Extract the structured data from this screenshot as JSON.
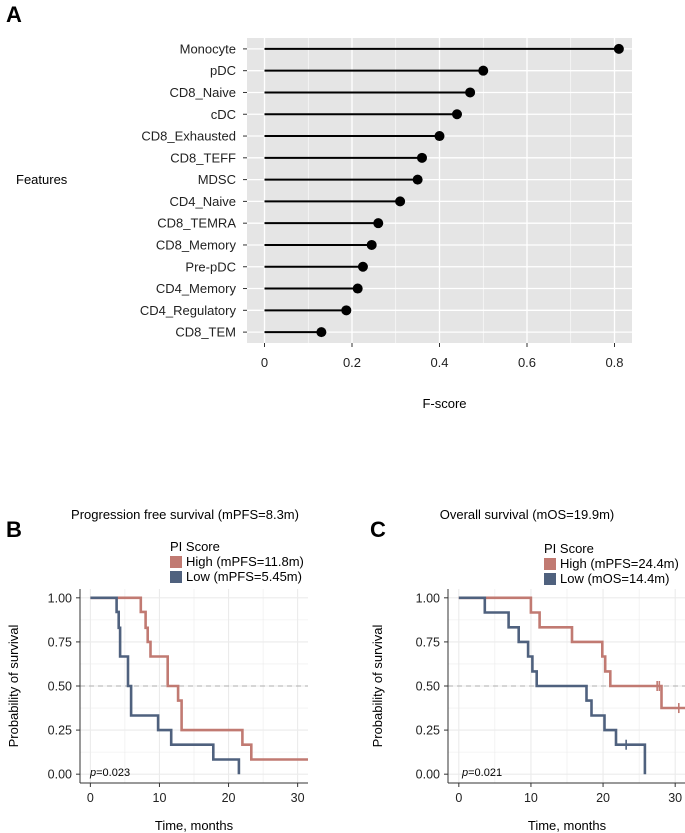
{
  "panels": {
    "A": "A",
    "B": "B",
    "C": "C"
  },
  "colors": {
    "panel_bg": "#e5e5e5",
    "grid": "#ffffff",
    "lollipop": "#000000",
    "high": "#c17a72",
    "low": "#4f617e",
    "median_line": "#bdbdbd",
    "km_grid": "#ebebeb"
  },
  "chart_data": [
    {
      "id": "feature-importance",
      "type": "lollipop",
      "title": "",
      "xlabel": "F-score",
      "ylabel": "Features",
      "xlim": [
        -0.04,
        0.84
      ],
      "xticks": [
        "0",
        "0.2",
        "0.4",
        "0.6",
        "0.8"
      ],
      "xtick_values": [
        0,
        0.2,
        0.4,
        0.6,
        0.8
      ],
      "categories": [
        "Monocyte",
        "pDC",
        "CD8_Naive",
        "cDC",
        "CD8_Exhausted",
        "CD8_TEFF",
        "MDSC",
        "CD4_Naive",
        "CD8_TEMRA",
        "CD8_Memory",
        "Pre-pDC",
        "CD4_Memory",
        "CD4_Regulatory",
        "CD8_TEM"
      ],
      "values": [
        0.81,
        0.5,
        0.47,
        0.44,
        0.4,
        0.36,
        0.35,
        0.31,
        0.26,
        0.245,
        0.225,
        0.213,
        0.187,
        0.13
      ]
    },
    {
      "id": "pfs",
      "type": "line",
      "subtype": "kaplan-meier",
      "title": "Progression free survival (mPFS=8.3m)",
      "xlabel": "Time, months",
      "ylabel": "Probability of survival",
      "xlim": [
        -1.5,
        31.5
      ],
      "ylim": [
        -0.05,
        1.05
      ],
      "xticks": [
        "0",
        "10",
        "20",
        "30"
      ],
      "xtick_values": [
        0,
        10,
        20,
        30
      ],
      "yticks": [
        "0.00",
        "0.25",
        "0.50",
        "0.75",
        "1.00"
      ],
      "ytick_values": [
        0,
        0.25,
        0.5,
        0.75,
        1.0
      ],
      "legend_title": "PI Score",
      "legend_position": "top-left",
      "median_ref": 0.5,
      "pvalue": "=0.023",
      "pvalue_prefix": "p",
      "series": [
        {
          "name": "High (mPFS=11.8m)",
          "color": "high",
          "x": [
            0,
            7.3,
            7.3,
            8.0,
            8.0,
            8.3,
            8.3,
            8.7,
            8.7,
            11.2,
            11.2,
            12.7,
            12.7,
            13.2,
            13.2,
            22.0,
            22.0,
            23.3,
            23.3,
            31.5
          ],
          "y": [
            1.0,
            1.0,
            0.92,
            0.92,
            0.83,
            0.83,
            0.75,
            0.75,
            0.667,
            0.667,
            0.5,
            0.5,
            0.417,
            0.417,
            0.25,
            0.25,
            0.167,
            0.167,
            0.083,
            0.083
          ],
          "censor_x": []
        },
        {
          "name": "Low  (mPFS=5.45m)",
          "color": "low",
          "x": [
            0,
            3.8,
            3.8,
            4.1,
            4.1,
            4.3,
            4.3,
            5.45,
            5.45,
            5.9,
            5.9,
            9.8,
            9.8,
            11.7,
            11.7,
            17.8,
            17.8,
            21.5,
            21.5
          ],
          "y": [
            1.0,
            1.0,
            0.92,
            0.92,
            0.83,
            0.83,
            0.667,
            0.667,
            0.5,
            0.5,
            0.333,
            0.333,
            0.25,
            0.25,
            0.167,
            0.167,
            0.083,
            0.083,
            0.0
          ],
          "censor_x": []
        }
      ]
    },
    {
      "id": "os",
      "type": "line",
      "subtype": "kaplan-meier",
      "title": "Overall survival (mOS=19.9m)",
      "xlabel": "Time, months",
      "ylabel": "Probability of survival",
      "xlim": [
        -1.5,
        31.5
      ],
      "ylim": [
        -0.05,
        1.05
      ],
      "xticks": [
        "0",
        "10",
        "20",
        "30"
      ],
      "xtick_values": [
        0,
        10,
        20,
        30
      ],
      "yticks": [
        "0.00",
        "0.25",
        "0.50",
        "0.75",
        "1.00"
      ],
      "ytick_values": [
        0,
        0.25,
        0.5,
        0.75,
        1.0
      ],
      "legend_title": "PI Score",
      "legend_position": "top-left",
      "median_ref": 0.5,
      "pvalue": "=0.021",
      "pvalue_prefix": "p",
      "series": [
        {
          "name": "High (mPFS=24.4m)",
          "color": "high",
          "x": [
            0,
            10.0,
            10.0,
            11.2,
            11.2,
            15.7,
            15.7,
            19.9,
            19.9,
            20.3,
            20.3,
            21.0,
            21.0,
            28.1,
            28.1,
            31.5
          ],
          "y": [
            1.0,
            1.0,
            0.917,
            0.917,
            0.833,
            0.833,
            0.75,
            0.75,
            0.667,
            0.667,
            0.583,
            0.583,
            0.5,
            0.5,
            0.375,
            0.375
          ],
          "censor_x": [
            27.5,
            27.8,
            30.5
          ]
        },
        {
          "name": "Low  (mOS=14.4m)",
          "color": "low",
          "x": [
            0,
            3.6,
            3.6,
            6.9,
            6.9,
            8.3,
            8.3,
            9.6,
            9.6,
            10.2,
            10.2,
            10.8,
            10.8,
            17.7,
            17.7,
            18.4,
            18.4,
            20.2,
            20.2,
            21.8,
            21.8,
            25.8,
            25.8
          ],
          "y": [
            1.0,
            1.0,
            0.917,
            0.917,
            0.833,
            0.833,
            0.75,
            0.75,
            0.667,
            0.667,
            0.583,
            0.583,
            0.5,
            0.5,
            0.417,
            0.417,
            0.333,
            0.333,
            0.25,
            0.25,
            0.167,
            0.167,
            0.0
          ],
          "censor_x": [
            23.2
          ]
        }
      ]
    }
  ]
}
